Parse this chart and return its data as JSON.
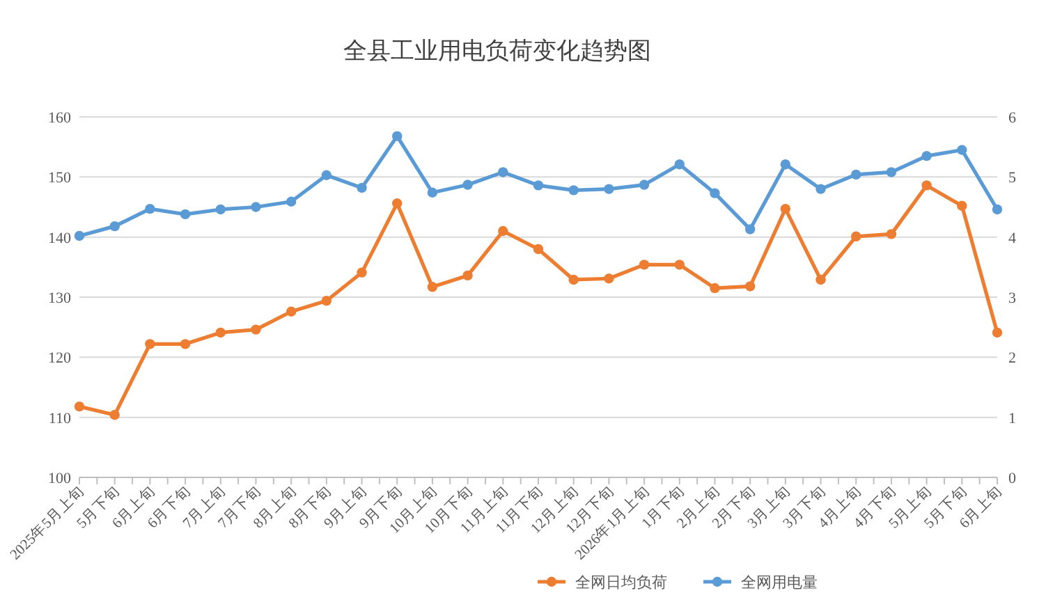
{
  "chart_data": {
    "type": "line",
    "title": "全县工业用电负荷变化趋势图",
    "categories": [
      "2025年5月上旬",
      "5月下旬",
      "6月上旬",
      "6月下旬",
      "7月上旬",
      "7月下旬",
      "8月上旬",
      "8月下旬",
      "9月上旬",
      "9月下旬",
      "10月上旬",
      "10月下旬",
      "11月上旬",
      "11月下旬",
      "12月上旬",
      "12月下旬",
      "2026年1月上旬",
      "1月下旬",
      "2月上旬",
      "2月下旬",
      "3月上旬",
      "3月下旬",
      "4月上旬",
      "4月下旬",
      "5月上旬",
      "5月下旬",
      "6月上旬"
    ],
    "series": [
      {
        "name": "全网日均负荷",
        "color": "#ed7d31",
        "values": [
          111.8,
          110.4,
          122.2,
          122.2,
          124.1,
          124.6,
          127.6,
          129.4,
          134.1,
          145.6,
          131.7,
          133.6,
          141.0,
          138.0,
          132.9,
          133.1,
          135.4,
          135.4,
          131.5,
          131.8,
          144.7,
          132.9,
          140.1,
          140.5,
          148.6,
          145.2,
          124.1
        ]
      },
      {
        "name": "全网用电量",
        "color": "#5b9bd5",
        "axis": "y2",
        "values": [
          4.02,
          4.18,
          4.47,
          4.38,
          4.46,
          4.5,
          4.59,
          5.03,
          4.82,
          5.68,
          4.74,
          4.87,
          5.08,
          4.86,
          4.78,
          4.8,
          4.87,
          5.21,
          4.73,
          4.13,
          5.21,
          4.8,
          5.04,
          5.08,
          5.35,
          5.45,
          4.46
        ]
      }
    ],
    "ylim": [
      100,
      160
    ],
    "yticks": [
      100,
      110,
      120,
      130,
      140,
      150,
      160
    ],
    "y2lim": [
      0,
      6
    ],
    "y2ticks": [
      0,
      1,
      2,
      3,
      4,
      5,
      6
    ],
    "grid": "y",
    "legend": "bottom",
    "marker": "circle",
    "line_style": "solid"
  }
}
